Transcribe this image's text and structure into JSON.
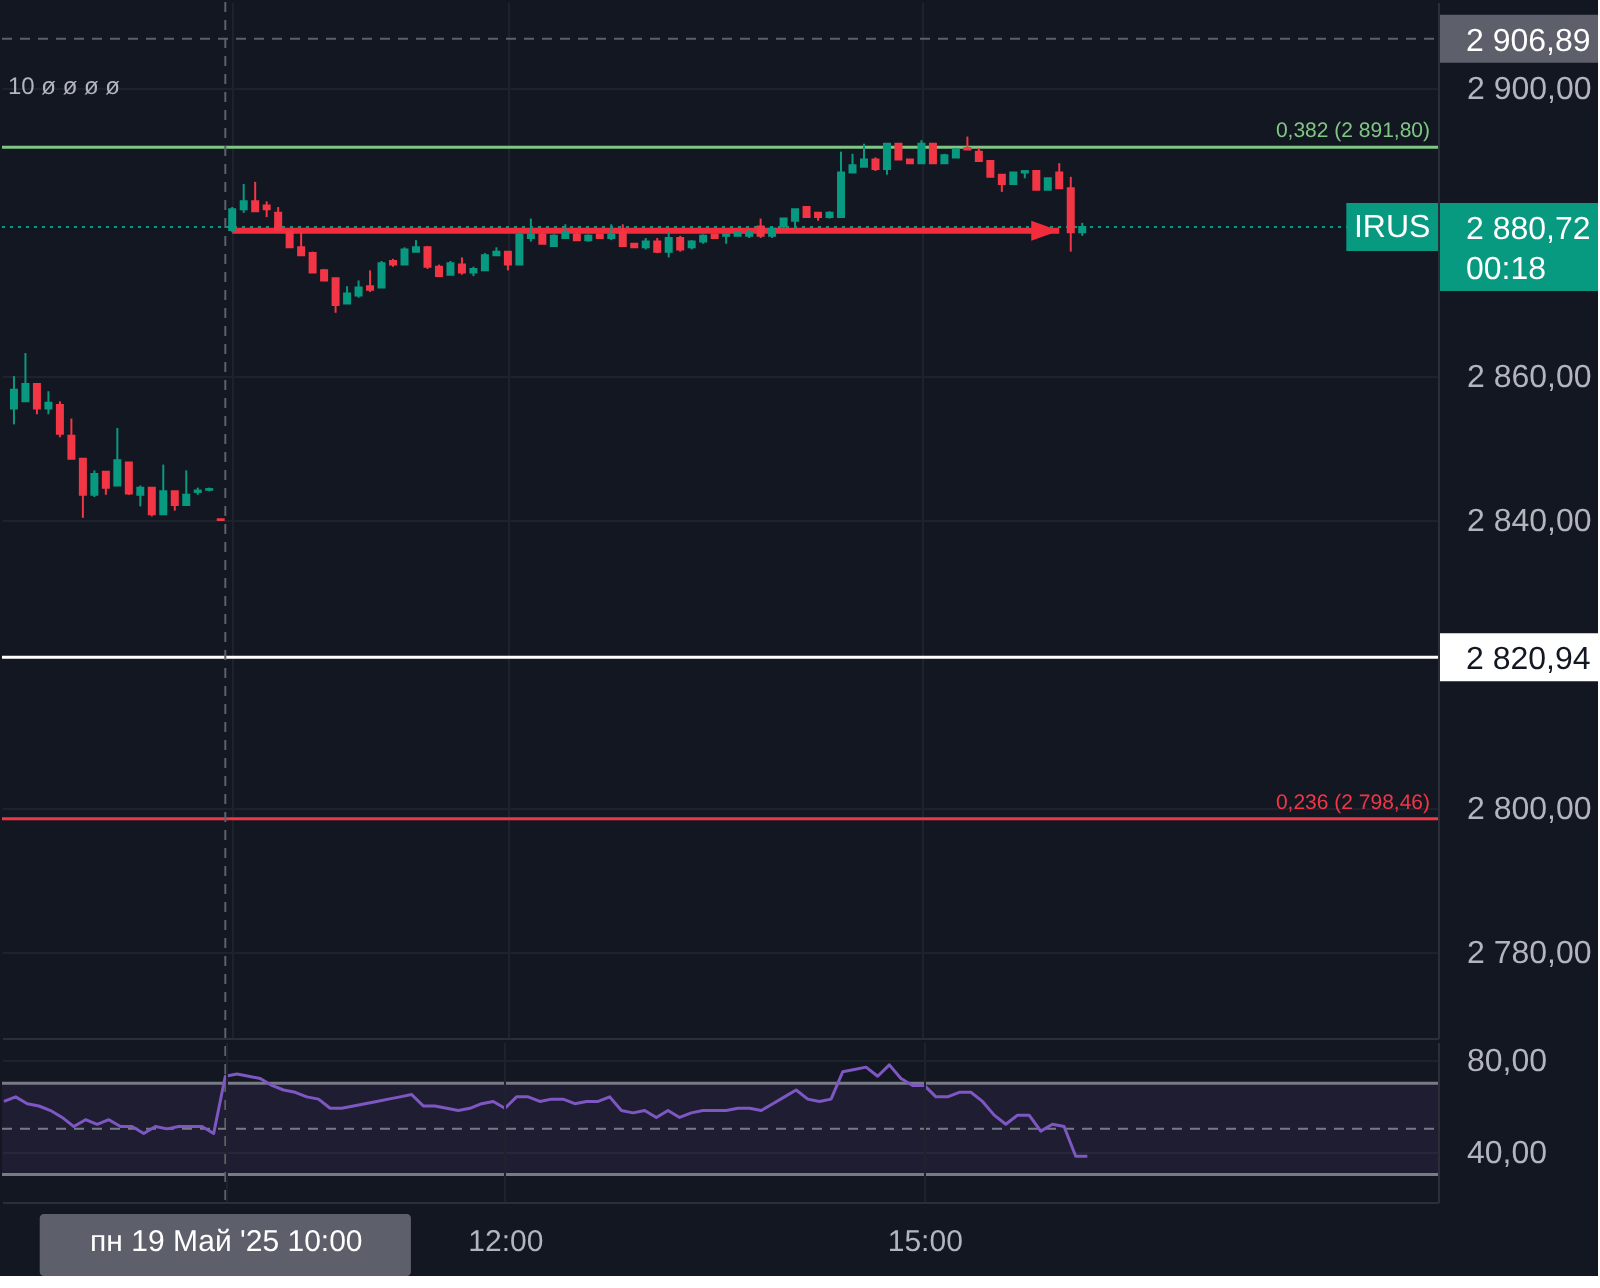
{
  "chart_data": [
    {
      "type": "candlestick",
      "categories": [
        null,
        null,
        null,
        null,
        null,
        null,
        null,
        null,
        null,
        null,
        null,
        null,
        null,
        null,
        null,
        null,
        null,
        null,
        null,
        null,
        null,
        null,
        null,
        null,
        null,
        null,
        null,
        null,
        null,
        null,
        null,
        null,
        null,
        null,
        null,
        null,
        null,
        null,
        null,
        null,
        null,
        null,
        null,
        null,
        null,
        null,
        null,
        null,
        null,
        null,
        null,
        null,
        null,
        null,
        null,
        null,
        null,
        null,
        null,
        null,
        null,
        null,
        null,
        null,
        null,
        null,
        null,
        null,
        null,
        null,
        null,
        null,
        null,
        null,
        null,
        null,
        null,
        null,
        null,
        null,
        null,
        null,
        null,
        null,
        null,
        null,
        null,
        null,
        null,
        null,
        null,
        null,
        null,
        null
      ],
      "ohlc": [
        [
          2855.5,
          2860.0,
          2853.3,
          2858.1
        ],
        [
          2856.5,
          2863.2,
          2856.5,
          2858.9
        ],
        [
          2858.9,
          2858.9,
          2854.7,
          2855.5
        ],
        [
          2855.5,
          2857.9,
          2854.7,
          2856.3
        ],
        [
          2856.0,
          2856.5,
          2851.5,
          2852.0
        ],
        [
          2851.7,
          2854.1,
          2848.5,
          2848.5
        ],
        [
          2848.5,
          2848.5,
          2840.3,
          2843.5
        ],
        [
          2843.5,
          2846.9,
          2843.2,
          2846.4
        ],
        [
          2846.7,
          2846.7,
          2843.5,
          2844.5
        ],
        [
          2844.8,
          2852.8,
          2844.8,
          2848.3
        ],
        [
          2848.0,
          2848.0,
          2843.5,
          2843.7
        ],
        [
          2843.5,
          2844.8,
          2841.9,
          2844.5
        ],
        [
          2844.5,
          2844.5,
          2840.5,
          2840.8
        ],
        [
          2840.8,
          2847.7,
          2840.8,
          2844.0
        ],
        [
          2844.0,
          2844.0,
          2841.3,
          2842.1
        ],
        [
          2842.1,
          2846.9,
          2842.1,
          2843.5
        ],
        [
          2843.9,
          2844.5,
          2843.5,
          2844.1
        ],
        [
          2844.2,
          2844.5,
          2844.0,
          2844.3
        ],
        [
          2840.1,
          2840.1,
          2840.0,
          2840.0
        ],
        [
          2880.3,
          2883.5,
          2880.0,
          2883.2
        ],
        [
          2883.2,
          2886.7,
          2882.7,
          2884.3
        ],
        [
          2884.3,
          2887.0,
          2882.9,
          2882.9
        ],
        [
          2883.7,
          2884.3,
          2882.1,
          2883.2
        ],
        [
          2882.7,
          2883.5,
          2880.3,
          2880.3
        ],
        [
          2880.0,
          2880.3,
          2877.9,
          2877.9
        ],
        [
          2877.9,
          2880.0,
          2876.8,
          2876.8
        ],
        [
          2877.1,
          2877.3,
          2874.4,
          2874.4
        ],
        [
          2874.7,
          2874.9,
          2873.3,
          2873.3
        ],
        [
          2873.6,
          2873.6,
          2868.8,
          2869.9
        ],
        [
          2870.1,
          2872.5,
          2870.1,
          2871.5
        ],
        [
          2871.2,
          2873.3,
          2870.9,
          2872.3
        ],
        [
          2872.5,
          2874.7,
          2871.7,
          2872.0
        ],
        [
          2872.3,
          2876.0,
          2872.3,
          2875.7
        ],
        [
          2876.0,
          2876.3,
          2875.2,
          2875.5
        ],
        [
          2875.5,
          2877.9,
          2875.5,
          2877.6
        ],
        [
          2877.3,
          2878.9,
          2877.3,
          2877.9
        ],
        [
          2877.9,
          2878.1,
          2874.9,
          2875.2
        ],
        [
          2875.2,
          2875.5,
          2873.9,
          2873.9
        ],
        [
          2874.1,
          2876.0,
          2874.1,
          2875.7
        ],
        [
          2875.5,
          2876.5,
          2874.1,
          2874.4
        ],
        [
          2874.4,
          2875.2,
          2873.9,
          2874.9
        ],
        [
          2874.7,
          2877.1,
          2874.7,
          2876.8
        ],
        [
          2876.8,
          2877.9,
          2876.8,
          2877.3
        ],
        [
          2877.3,
          2877.3,
          2874.7,
          2875.5
        ],
        [
          2875.5,
          2880.0,
          2875.5,
          2879.7
        ],
        [
          2879.2,
          2881.9,
          2878.7,
          2879.7
        ],
        [
          2879.7,
          2880.0,
          2878.4,
          2878.4
        ],
        [
          2878.1,
          2879.7,
          2878.1,
          2879.5
        ],
        [
          2879.2,
          2881.1,
          2879.2,
          2880.0
        ],
        [
          2879.7,
          2880.0,
          2878.9,
          2878.9
        ],
        [
          2878.9,
          2879.7,
          2878.7,
          2879.5
        ],
        [
          2879.7,
          2879.7,
          2879.2,
          2879.2
        ],
        [
          2879.2,
          2881.1,
          2878.9,
          2879.7
        ],
        [
          2880.0,
          2881.1,
          2878.1,
          2878.1
        ],
        [
          2878.4,
          2878.4,
          2877.9,
          2877.9
        ],
        [
          2877.9,
          2879.2,
          2877.6,
          2878.7
        ],
        [
          2878.7,
          2879.2,
          2877.1,
          2877.3
        ],
        [
          2877.3,
          2880.0,
          2876.5,
          2879.2
        ],
        [
          2879.2,
          2879.5,
          2877.3,
          2877.6
        ],
        [
          2877.9,
          2878.9,
          2877.6,
          2878.7
        ],
        [
          2878.7,
          2879.7,
          2878.4,
          2879.5
        ],
        [
          2879.7,
          2879.7,
          2879.2,
          2879.2
        ],
        [
          2879.5,
          2879.7,
          2878.4,
          2879.7
        ],
        [
          2879.5,
          2880.0,
          2879.5,
          2880.0
        ],
        [
          2879.5,
          2880.3,
          2879.2,
          2880.0
        ],
        [
          2880.8,
          2881.9,
          2879.2,
          2879.5
        ],
        [
          2879.5,
          2880.8,
          2879.2,
          2880.5
        ],
        [
          2880.8,
          2881.9,
          2880.5,
          2881.9
        ],
        [
          2881.6,
          2883.2,
          2880.5,
          2883.2
        ],
        [
          2883.5,
          2883.5,
          2882.1,
          2882.1
        ],
        [
          2882.7,
          2882.7,
          2881.6,
          2882.1
        ],
        [
          2882.1,
          2882.9,
          2881.9,
          2882.7
        ],
        [
          2882.1,
          2891.2,
          2882.1,
          2888.3
        ],
        [
          2888.3,
          2890.9,
          2888.3,
          2889.3
        ],
        [
          2889.1,
          2892.3,
          2889.1,
          2890.1
        ],
        [
          2890.1,
          2890.4,
          2888.5,
          2888.8
        ],
        [
          2888.8,
          2892.3,
          2888.0,
          2892.3
        ],
        [
          2892.3,
          2892.3,
          2890.1,
          2890.1
        ],
        [
          2890.1,
          2890.1,
          2889.6,
          2889.6
        ],
        [
          2889.6,
          2892.8,
          2889.6,
          2892.3
        ],
        [
          2892.3,
          2892.3,
          2889.6,
          2889.6
        ],
        [
          2889.6,
          2890.9,
          2889.6,
          2890.7
        ],
        [
          2890.4,
          2891.7,
          2890.4,
          2891.5
        ],
        [
          2891.7,
          2893.3,
          2891.5,
          2891.5
        ],
        [
          2891.2,
          2891.7,
          2889.9,
          2889.9
        ],
        [
          2889.9,
          2889.9,
          2887.7,
          2887.7
        ],
        [
          2888.0,
          2888.0,
          2885.6,
          2886.7
        ],
        [
          2886.7,
          2888.3,
          2886.7,
          2888.3
        ],
        [
          2888.3,
          2888.5,
          2887.5,
          2888.5
        ],
        [
          2888.5,
          2888.5,
          2885.9,
          2885.9
        ],
        [
          2885.9,
          2887.5,
          2885.9,
          2887.5
        ],
        [
          2888.3,
          2889.6,
          2886.1,
          2886.1
        ],
        [
          2886.1,
          2887.7,
          2877.3,
          2880.0
        ],
        [
          2880.0,
          2881.3,
          2879.5,
          2880.72
        ]
      ],
      "colors": [
        "#089981",
        "#089981",
        "#f23645",
        "#089981",
        "#f23645",
        "#f23645",
        "#f23645",
        "#089981",
        "#f23645",
        "#089981",
        "#f23645",
        "#089981",
        "#f23645",
        "#089981",
        "#f23645",
        "#089981",
        "#089981",
        "#089981",
        "#f23645",
        "#089981",
        "#089981",
        "#f23645",
        "#f23645",
        "#f23645",
        "#f23645",
        "#f23645",
        "#f23645",
        "#f23645",
        "#f23645",
        "#089981",
        "#089981",
        "#f23645",
        "#089981",
        "#f23645",
        "#089981",
        "#089981",
        "#f23645",
        "#f23645",
        "#089981",
        "#f23645",
        "#089981",
        "#089981",
        "#089981",
        "#f23645",
        "#089981",
        "#089981",
        "#f23645",
        "#089981",
        "#089981",
        "#f23645",
        "#089981",
        "#f23645",
        "#089981",
        "#f23645",
        "#f23645",
        "#089981",
        "#f23645",
        "#089981",
        "#f23645",
        "#089981",
        "#089981",
        "#f23645",
        "#089981",
        "#089981",
        "#089981",
        "#f23645",
        "#089981",
        "#089981",
        "#089981",
        "#f23645",
        "#f23645",
        "#089981",
        "#089981",
        "#089981",
        "#089981",
        "#f23645",
        "#089981",
        "#f23645",
        "#f23645",
        "#089981",
        "#f23645",
        "#089981",
        "#089981",
        "#f23645",
        "#f23645",
        "#f23645",
        "#f23645",
        "#089981",
        "#089981",
        "#f23645",
        "#089981",
        "#f23645",
        "#f23645",
        "#089981"
      ],
      "series": [
        {
          "type": "line",
          "color": "#f22c3d",
          "values": [
            null,
            null,
            null,
            null,
            null,
            null,
            null,
            null,
            null,
            null,
            null,
            null,
            null,
            null,
            null,
            null,
            null,
            null,
            null,
            2880.2,
            2880.2,
            2880.2,
            2880.2,
            2880.2,
            2880.2,
            2880.2,
            2880.2,
            2880.2,
            2880.2,
            2880.2,
            2880.2,
            2880.2,
            2880.2,
            2880.2,
            2880.2,
            2880.2,
            2880.2,
            2880.2,
            2880.2,
            2880.2,
            2880.2,
            2880.2,
            2880.2,
            2880.2,
            2880.2,
            2880.2,
            2880.2,
            2880.2,
            2880.2,
            2880.2,
            2880.2,
            2880.2,
            2880.2,
            2880.2,
            2880.2,
            2880.2,
            2880.2,
            2880.2,
            2880.2,
            2880.2,
            2880.2,
            2880.2,
            2880.2,
            2880.2,
            2880.2,
            2880.2,
            2880.2,
            2880.2,
            2880.2,
            2880.2,
            2880.2,
            2880.2,
            2880.2,
            2880.2,
            2880.2,
            2880.2,
            2880.2,
            2880.2,
            2880.2,
            2880.2,
            2880.2,
            2880.2,
            2880.2,
            2880.2,
            2880.2,
            2880.2,
            2880.2,
            2880.2,
            2880.2,
            2880.2,
            2880.2,
            2880.2,
            null,
            null
          ]
        }
      ],
      "ylim": [
        2768,
        2912
      ],
      "yticks": [
        {
          "value": 2780,
          "label": "2 780,00"
        },
        {
          "value": 2800,
          "label": "2 800,00"
        },
        {
          "value": 2840,
          "label": "2 840,00"
        },
        {
          "value": 2860,
          "label": "2 860,00"
        },
        {
          "value": 2900,
          "label": "2 900,00"
        }
      ],
      "ref_lines": [
        {
          "axis": "y",
          "value": 2891.8,
          "color": "#81c784"
        },
        {
          "axis": "y",
          "value": 2798.46,
          "color": "#f23645"
        },
        {
          "axis": "y",
          "value": 2820.94,
          "label": "2 820,94",
          "color": "#ffffff"
        },
        {
          "axis": "y",
          "value": 2880.72,
          "label": "2 880,72\n00:18",
          "color": "#089981",
          "line_style": "dotted"
        },
        {
          "axis": "y",
          "value": 2906.89,
          "label": "2 906,89",
          "color": "#5d606b",
          "line_style": "dashed"
        }
      ],
      "annotations": [
        "10 ø ø ø ø",
        {
          "text": "0,382 (2 891,80)",
          "y": 2891.8
        },
        {
          "text": "0,236 (2 798,46)",
          "y": 2798.46
        },
        {
          "text": "IRUS",
          "y": 2880.72
        }
      ],
      "grid": true,
      "tick_labels": "y"
    },
    {
      "type": "line",
      "categories": [
        null,
        null,
        null,
        null,
        null,
        null,
        null,
        null,
        null,
        null,
        null,
        null,
        null,
        null,
        null,
        null,
        null,
        null,
        null,
        "пн 19 Май '25 10:00",
        null,
        null,
        null,
        null,
        null,
        null,
        null,
        null,
        null,
        null,
        null,
        null,
        null,
        null,
        null,
        null,
        null,
        null,
        null,
        null,
        null,
        null,
        null,
        "12:00",
        null,
        null,
        null,
        null,
        null,
        null,
        null,
        null,
        null,
        null,
        null,
        null,
        null,
        null,
        null,
        null,
        null,
        null,
        null,
        null,
        null,
        null,
        null,
        null,
        null,
        null,
        null,
        null,
        null,
        null,
        null,
        null,
        null,
        null,
        null,
        "15:00",
        null,
        null,
        null,
        null,
        null,
        null,
        null,
        null,
        null,
        null,
        null,
        null,
        null,
        null
      ],
      "series": [
        {
          "color": "#7e57c2",
          "values": [
            62,
            64,
            61,
            60,
            58,
            55,
            51,
            54,
            52,
            54,
            51,
            51,
            48,
            51,
            50,
            51,
            51,
            51,
            48,
            73,
            74,
            73,
            72,
            69,
            67,
            66,
            64,
            63,
            59,
            59,
            60,
            61,
            62,
            63,
            64,
            65,
            60,
            60,
            59,
            58,
            59,
            61,
            62,
            59,
            64,
            64,
            62,
            63,
            63,
            61,
            62,
            62,
            64,
            58,
            57,
            58,
            55,
            58,
            55,
            57,
            58,
            58,
            58,
            59,
            59,
            58,
            61,
            64,
            67,
            63,
            62,
            63,
            75,
            76,
            77,
            73,
            78,
            72,
            69,
            69,
            64,
            64,
            66,
            66,
            62,
            56,
            52,
            56,
            56,
            49,
            52,
            51,
            38,
            38
          ]
        }
      ],
      "ylim": [
        18,
        88
      ],
      "yticks": [
        {
          "value": 80,
          "label": "80,00"
        },
        {
          "value": 40,
          "label": "40,00"
        }
      ],
      "ref_lines": [
        {
          "axis": "y",
          "value": 70,
          "color": "#787b86"
        },
        {
          "axis": "y",
          "value": 50,
          "color": "#787b86",
          "line_style": "dashed"
        },
        {
          "axis": "y",
          "value": 30,
          "color": "#787b86"
        },
        {
          "axis": "x",
          "value": "пн 19 Май '25 10:00",
          "color": "#5d606b",
          "line_style": "dashed"
        }
      ],
      "bands": [
        {
          "axis": "y",
          "from": 30,
          "to": 70,
          "color": "#7e57c2"
        }
      ],
      "grid": true
    }
  ]
}
